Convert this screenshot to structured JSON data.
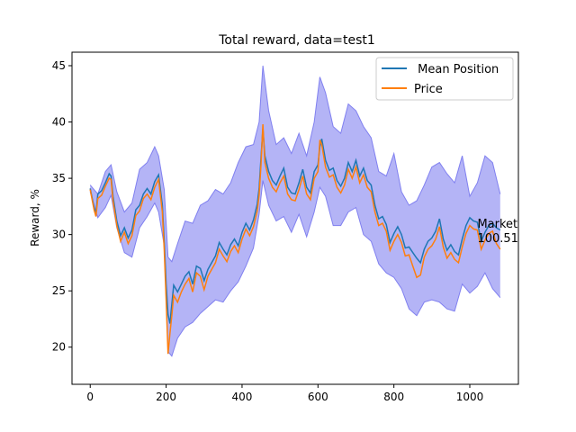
{
  "chart_data": {
    "type": "line",
    "title": "Total reward, data=test1",
    "xlabel": "",
    "ylabel": "Reward, %",
    "xlim": [
      -48,
      1128
    ],
    "ylim": [
      16.7,
      46.2
    ],
    "xticks": [
      0,
      200,
      400,
      600,
      800,
      1000
    ],
    "yticks": [
      20,
      25,
      30,
      35,
      40,
      45
    ],
    "grid": false,
    "legend_position": "top-right",
    "annotation": {
      "lines": [
        "Market",
        "100.51"
      ],
      "x": 1020,
      "y": 30.6
    },
    "band": {
      "name": "",
      "color": "#7777ee",
      "x": [
        0,
        20,
        40,
        55,
        70,
        90,
        110,
        130,
        150,
        170,
        180,
        195,
        205,
        215,
        230,
        250,
        270,
        290,
        310,
        330,
        350,
        370,
        390,
        410,
        430,
        445,
        455,
        470,
        490,
        510,
        530,
        550,
        570,
        590,
        605,
        620,
        640,
        660,
        680,
        700,
        720,
        740,
        760,
        780,
        800,
        820,
        840,
        860,
        880,
        900,
        920,
        940,
        960,
        980,
        1000,
        1020,
        1040,
        1060,
        1080
      ],
      "upper": [
        34.4,
        33.6,
        35.6,
        36.2,
        33.8,
        32.0,
        32.8,
        35.8,
        36.4,
        37.8,
        37.0,
        34.0,
        28.0,
        27.6,
        29.2,
        31.2,
        31.0,
        32.6,
        33.0,
        34.0,
        33.6,
        34.6,
        36.4,
        37.8,
        38.0,
        40.0,
        45.0,
        41.0,
        38.0,
        38.6,
        37.2,
        39.0,
        37.0,
        40.0,
        44.0,
        42.6,
        39.6,
        39.0,
        41.6,
        41.0,
        39.6,
        38.6,
        35.6,
        35.2,
        37.2,
        33.8,
        32.6,
        33.0,
        34.4,
        36.0,
        36.4,
        35.4,
        34.6,
        37.0,
        33.4,
        34.6,
        37.0,
        36.4,
        33.6
      ],
      "lower": [
        33.8,
        31.5,
        32.4,
        33.5,
        30.6,
        28.4,
        28.0,
        30.6,
        31.6,
        32.8,
        32.0,
        29.0,
        19.6,
        19.2,
        20.8,
        21.8,
        22.2,
        23.0,
        23.6,
        24.2,
        24.0,
        25.0,
        25.8,
        27.2,
        28.8,
        31.8,
        34.8,
        32.6,
        31.2,
        31.6,
        30.2,
        31.8,
        29.8,
        32.0,
        34.2,
        33.4,
        30.8,
        30.8,
        32.0,
        32.4,
        30.0,
        29.4,
        27.4,
        26.6,
        26.2,
        25.2,
        23.4,
        22.8,
        24.0,
        24.2,
        24.0,
        23.4,
        23.2,
        25.6,
        24.8,
        25.4,
        26.6,
        25.2,
        24.4
      ]
    },
    "series": [
      {
        "name": " Mean Position",
        "color": "#1f77b4",
        "x": [
          0,
          10,
          15,
          20,
          30,
          40,
          50,
          55,
          60,
          70,
          80,
          90,
          100,
          110,
          120,
          130,
          140,
          150,
          160,
          170,
          180,
          190,
          195,
          200,
          205,
          210,
          215,
          220,
          230,
          240,
          250,
          260,
          270,
          280,
          290,
          300,
          310,
          320,
          330,
          340,
          350,
          360,
          370,
          380,
          390,
          400,
          410,
          420,
          430,
          440,
          445,
          450,
          455,
          460,
          470,
          480,
          490,
          500,
          510,
          520,
          530,
          540,
          550,
          560,
          570,
          580,
          590,
          600,
          605,
          610,
          620,
          630,
          640,
          650,
          660,
          670,
          680,
          690,
          700,
          710,
          720,
          730,
          740,
          750,
          760,
          770,
          780,
          790,
          800,
          810,
          820,
          830,
          840,
          850,
          860,
          870,
          880,
          890,
          900,
          910,
          920,
          930,
          940,
          950,
          960,
          970,
          980,
          990,
          1000,
          1010,
          1020,
          1030,
          1040,
          1050,
          1060,
          1070,
          1080
        ],
        "y": [
          34.1,
          32.4,
          31.9,
          33.6,
          33.9,
          34.6,
          35.4,
          35.2,
          33.4,
          31.2,
          29.9,
          30.6,
          29.7,
          30.4,
          32.2,
          32.6,
          33.6,
          34.1,
          33.6,
          34.7,
          35.3,
          32.6,
          29.4,
          25.6,
          22.9,
          22.1,
          23.8,
          25.5,
          24.9,
          25.6,
          26.3,
          26.7,
          25.6,
          27.2,
          27.0,
          25.9,
          26.9,
          27.5,
          28.1,
          29.3,
          28.7,
          28.2,
          29.1,
          29.6,
          29.0,
          30.2,
          31.0,
          30.4,
          31.3,
          32.7,
          34.1,
          36.8,
          39.4,
          37.0,
          35.6,
          34.8,
          34.4,
          35.2,
          35.9,
          34.2,
          33.7,
          33.6,
          34.6,
          35.8,
          34.2,
          33.7,
          35.6,
          36.2,
          37.8,
          38.5,
          36.6,
          35.7,
          35.9,
          34.8,
          34.3,
          35.0,
          36.4,
          35.6,
          36.6,
          35.2,
          35.9,
          34.8,
          34.4,
          32.6,
          31.4,
          31.6,
          30.9,
          29.3,
          30.1,
          30.7,
          30.0,
          28.8,
          28.9,
          28.4,
          27.9,
          27.5,
          28.7,
          29.4,
          29.7,
          30.3,
          31.4,
          29.6,
          28.6,
          29.1,
          28.5,
          28.2,
          29.6,
          30.8,
          31.5,
          31.2,
          31.1,
          29.4,
          30.2,
          30.8,
          31.0,
          30.6,
          30.4
        ]
      },
      {
        "name": "Price",
        "color": "#ff7f0e",
        "x": [
          0,
          10,
          15,
          20,
          30,
          40,
          50,
          55,
          60,
          70,
          80,
          90,
          100,
          110,
          120,
          130,
          140,
          150,
          160,
          170,
          180,
          190,
          195,
          200,
          205,
          210,
          215,
          220,
          230,
          240,
          250,
          260,
          270,
          280,
          290,
          300,
          310,
          320,
          330,
          340,
          350,
          360,
          370,
          380,
          390,
          400,
          410,
          420,
          430,
          440,
          445,
          450,
          455,
          460,
          470,
          480,
          490,
          500,
          510,
          520,
          530,
          540,
          550,
          560,
          570,
          580,
          590,
          600,
          605,
          610,
          620,
          630,
          640,
          650,
          660,
          670,
          680,
          690,
          700,
          710,
          720,
          730,
          740,
          750,
          760,
          770,
          780,
          790,
          800,
          810,
          820,
          830,
          840,
          850,
          860,
          870,
          880,
          890,
          900,
          910,
          920,
          930,
          940,
          950,
          960,
          970,
          980,
          990,
          1000,
          1010,
          1020,
          1030,
          1040,
          1050,
          1060,
          1070,
          1080
        ],
        "y": [
          34.0,
          32.2,
          31.6,
          33.2,
          33.5,
          34.3,
          35.0,
          34.9,
          33.0,
          30.8,
          29.4,
          30.2,
          29.2,
          29.9,
          31.7,
          32.1,
          33.2,
          33.6,
          33.1,
          34.2,
          34.9,
          32.0,
          28.6,
          24.2,
          19.4,
          21.2,
          22.8,
          24.6,
          24.0,
          24.9,
          25.6,
          26.1,
          24.9,
          26.6,
          26.3,
          25.1,
          26.3,
          26.9,
          27.5,
          28.7,
          28.1,
          27.6,
          28.5,
          29.0,
          28.4,
          29.6,
          30.5,
          29.9,
          30.7,
          32.1,
          33.5,
          36.2,
          39.8,
          36.4,
          35.0,
          34.2,
          33.8,
          34.6,
          35.2,
          33.6,
          33.1,
          33.0,
          34.0,
          35.2,
          33.6,
          33.1,
          35.0,
          35.6,
          38.4,
          38.0,
          36.0,
          35.1,
          35.3,
          34.2,
          33.7,
          34.4,
          35.8,
          35.0,
          36.0,
          34.6,
          35.3,
          34.2,
          33.8,
          32.0,
          30.8,
          31.0,
          30.3,
          28.6,
          29.4,
          30.0,
          29.3,
          28.1,
          28.2,
          27.2,
          26.2,
          26.4,
          28.0,
          28.7,
          29.0,
          29.6,
          30.7,
          28.9,
          27.9,
          28.4,
          27.8,
          27.5,
          28.9,
          30.1,
          30.8,
          30.5,
          30.4,
          28.7,
          29.5,
          30.1,
          30.3,
          29.2,
          28.7
        ]
      }
    ]
  }
}
